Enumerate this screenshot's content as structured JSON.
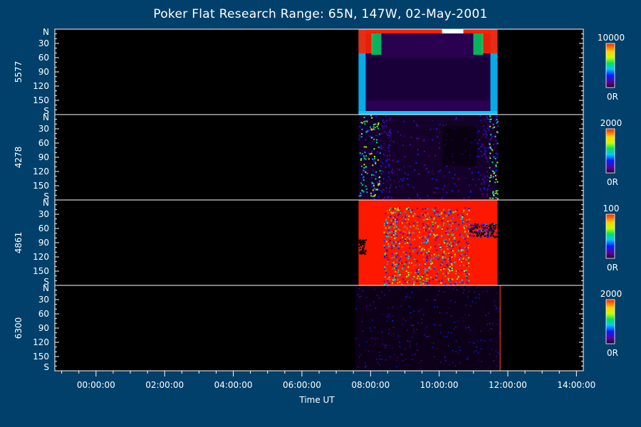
{
  "title": "Poker Flat Research Range: 65N, 147W, 02-May-2001",
  "xlabel": "Time UT",
  "chart_data": {
    "type": "heatmap",
    "title": "Poker Flat Research Range: 65N, 147W, 02-May-2001",
    "xlabel": "Time UT",
    "x_ticks": [
      "00:00:00",
      "02:00:00",
      "04:00:00",
      "06:00:00",
      "08:00:00",
      "10:00:00",
      "12:00:00",
      "14:00:00"
    ],
    "x_tick_hours": [
      0,
      2,
      4,
      6,
      8,
      10,
      12,
      14
    ],
    "xlim_hours": [
      -1.2,
      14.2
    ],
    "y_ticks": [
      "N",
      "30",
      "60",
      "90",
      "120",
      "150",
      "S"
    ],
    "y_tick_values": [
      0,
      30,
      60,
      90,
      120,
      150,
      180
    ],
    "ylim": [
      0,
      180
    ],
    "colorbar": "rainbow",
    "panels": [
      {
        "wavelength": "5577",
        "cbar_max": "10000",
        "cbar_min": "0R",
        "data_start_hour": 7.65,
        "data_end_hour": 11.7,
        "pattern": "bright-edges"
      },
      {
        "wavelength": "4278",
        "cbar_max": "2000",
        "cbar_min": "0R",
        "data_start_hour": 7.65,
        "data_end_hour": 11.7,
        "pattern": "noisy-edges"
      },
      {
        "wavelength": "4861",
        "cbar_max": "100",
        "cbar_min": "0R",
        "data_start_hour": 7.65,
        "data_end_hour": 11.7,
        "pattern": "saturated"
      },
      {
        "wavelength": "6300",
        "cbar_max": "2000",
        "cbar_min": "0R",
        "data_start_hour": 7.55,
        "data_end_hour": 11.8,
        "pattern": "faint"
      }
    ]
  }
}
